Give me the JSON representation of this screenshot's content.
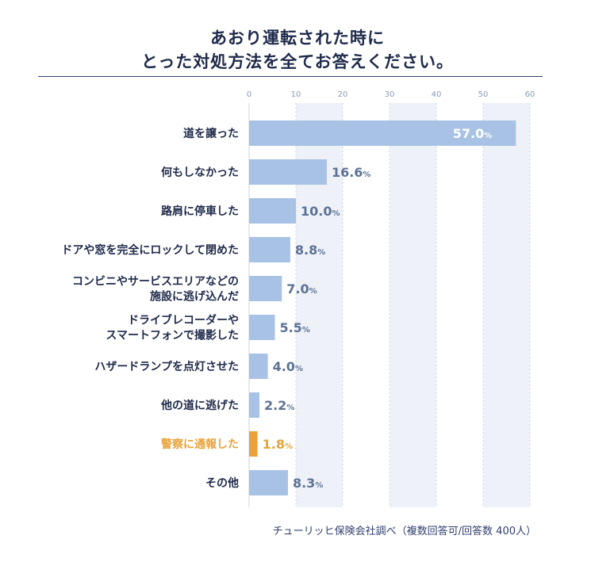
{
  "title_line1": "あおり運転された時に",
  "title_line2": "とった対処方法を全てお答えください。",
  "source": "チューリッヒ保険会社調べ（複数回答可/回答数 400人）",
  "colors": {
    "bar": "#a7c2e4",
    "highlight": "#e8a23a",
    "text": "#1f2a4a",
    "value_text": "#5d7295",
    "grid": "#c9d4e6",
    "band": "#eef1f7"
  },
  "chart_data": {
    "type": "bar",
    "orientation": "horizontal",
    "categories": [
      [
        "道を譲った"
      ],
      [
        "何もしなかった"
      ],
      [
        "路肩に停車した"
      ],
      [
        "ドアや窓を完全にロックして閉めた"
      ],
      [
        "コンビニやサービスエリアなどの",
        "施設に逃げ込んだ"
      ],
      [
        "ドライブレコーダーや",
        "スマートフォンで撮影した"
      ],
      [
        "ハザードランプを点灯させた"
      ],
      [
        "他の道に逃げた"
      ],
      [
        "警察に通報した"
      ],
      [
        "その他"
      ]
    ],
    "values": [
      57.0,
      16.6,
      10.0,
      8.8,
      7.0,
      5.5,
      4.0,
      2.2,
      1.8,
      8.3
    ],
    "value_labels": [
      "57.0",
      "16.6",
      "10.0",
      "8.8",
      "7.0",
      "5.5",
      "4.0",
      "2.2",
      "1.8",
      "8.3"
    ],
    "unit": "%",
    "highlight_index": 8,
    "xlim": [
      0,
      60
    ],
    "xticks": [
      "0",
      "10",
      "20",
      "30",
      "40",
      "50",
      "60"
    ],
    "grid": true
  }
}
